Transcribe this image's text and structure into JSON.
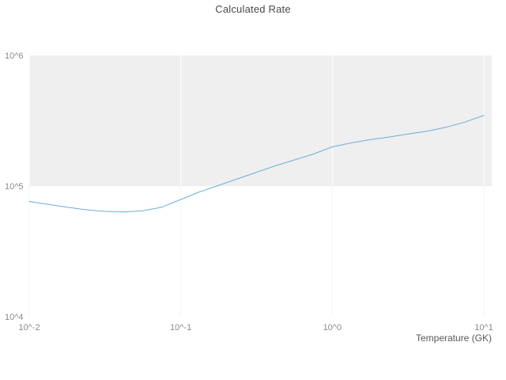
{
  "chart": {
    "title": "Calculated Rate",
    "x_axis_label": "Temperature (GK)"
  },
  "chart_data": {
    "type": "line",
    "title": "Calculated Rate",
    "xlabel": "Temperature (GK)",
    "ylabel": "",
    "xscale": "log",
    "yscale": "log",
    "xlim": [
      0.01,
      10
    ],
    "ylim": [
      10000,
      1000000
    ],
    "grid": true,
    "legend": false,
    "x_ticks": [
      {
        "value": 0.01,
        "label": "10^-2"
      },
      {
        "value": 0.1,
        "label": "10^-1"
      },
      {
        "value": 1,
        "label": "10^0"
      },
      {
        "value": 10,
        "label": "10^1"
      }
    ],
    "y_ticks": [
      {
        "value": 10000,
        "label": "10^4"
      },
      {
        "value": 100000,
        "label": "10^5"
      },
      {
        "value": 1000000,
        "label": "10^6"
      }
    ],
    "highlight_band": {
      "ymin": 100000,
      "ymax": 1000000,
      "color": "#efefef"
    },
    "series": [
      {
        "name": "Calculated Rate",
        "color": "#6baed6",
        "x": [
          0.01,
          0.0133,
          0.0178,
          0.0237,
          0.0316,
          0.0422,
          0.0562,
          0.075,
          0.1,
          0.133,
          0.178,
          0.237,
          0.316,
          0.422,
          0.562,
          0.75,
          1.0,
          1.33,
          1.78,
          2.37,
          3.16,
          4.22,
          5.62,
          7.5,
          10.0
        ],
        "y": [
          76200,
          72400,
          68900,
          65800,
          64000,
          63400,
          64600,
          68900,
          78900,
          90200,
          101200,
          113500,
          127400,
          142900,
          158500,
          175800,
          199500,
          213800,
          226500,
          237100,
          250000,
          263000,
          281800,
          309000,
          346700
        ]
      }
    ]
  },
  "colors": {
    "title_text": "#4a4a4a",
    "tick_text": "#8a8a8a",
    "axis_label_text": "#5a5a5a",
    "gridline_on_band": "#ffffff",
    "gridline_on_white": "#f5f5f5"
  }
}
